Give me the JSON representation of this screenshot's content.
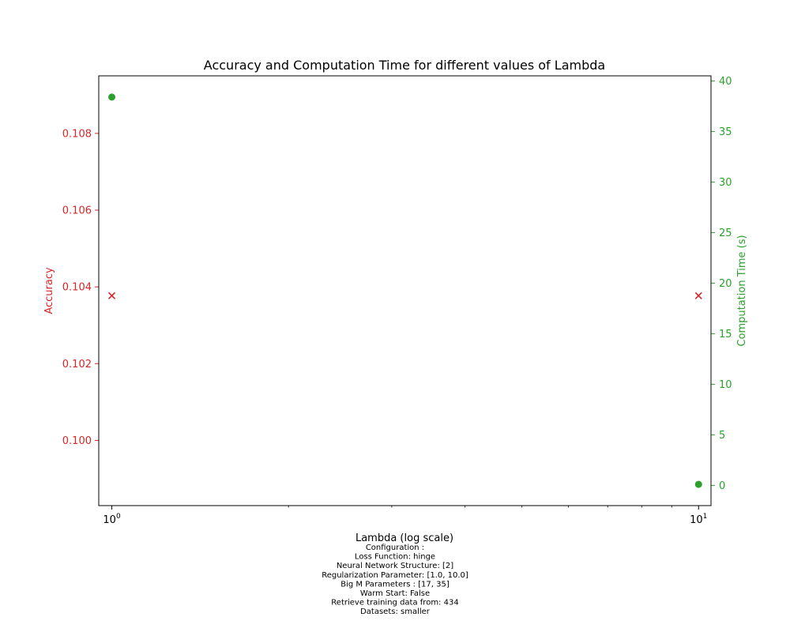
{
  "chart_data": {
    "type": "scatter",
    "title": "Accuracy and Computation Time for different values of Lambda",
    "xlabel": "Lambda (log scale)",
    "xscale": "log",
    "xlim": [
      0.95,
      10.5
    ],
    "xticks": [
      {
        "value": 1,
        "base": "10",
        "exp": "0"
      },
      {
        "value": 10,
        "base": "10",
        "exp": "1"
      }
    ],
    "x": [
      1,
      10
    ],
    "y_left": {
      "label": "Accuracy",
      "color": "#d62728",
      "lim": [
        0.0983,
        0.1095
      ],
      "ticks": [
        "0.100",
        "0.102",
        "0.104",
        "0.106",
        "0.108"
      ],
      "tick_values": [
        0.1,
        0.102,
        0.104,
        0.106,
        0.108
      ]
    },
    "y_right": {
      "label": "Computation Time (s)",
      "color": "#2ca02c",
      "lim": [
        -2,
        40.5
      ],
      "ticks": [
        "0",
        "5",
        "10",
        "15",
        "20",
        "25",
        "30",
        "35",
        "40"
      ],
      "tick_values": [
        0,
        5,
        10,
        15,
        20,
        25,
        30,
        35,
        40
      ]
    },
    "series": [
      {
        "axis": "left",
        "marker": "x",
        "color": "#d62728",
        "values": [
          0.10377,
          0.10377
        ]
      },
      {
        "axis": "right",
        "marker": "o",
        "color": "#2ca02c",
        "values": [
          38.4,
          0.1
        ]
      }
    ]
  },
  "caption": [
    "Configuration :",
    "Loss Function: hinge",
    "Neural Network Structure: [2]",
    "Regularization Parameter: [1.0, 10.0]",
    "Big M Parameters : [17, 35]",
    "Warm Start: False",
    "Retrieve training data from: 434",
    "Datasets: smaller"
  ]
}
